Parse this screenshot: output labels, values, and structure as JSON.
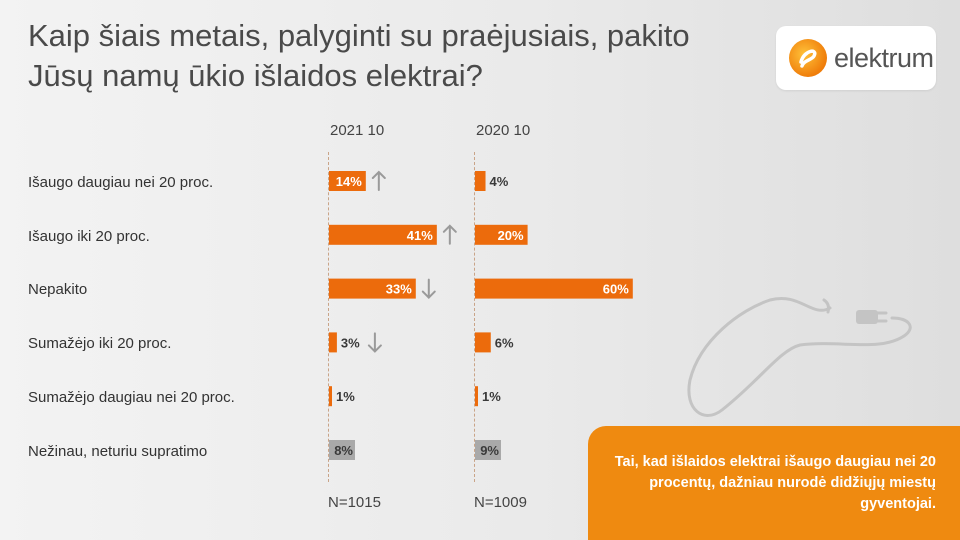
{
  "title": "Kaip šiais metais, palyginti su praėjusiais, pakito Jūsų namų ūkio išlaidos elektrai?",
  "logo": {
    "text": "elektrum"
  },
  "callout": {
    "text": "Tai, kad išlaidos elektrai išaugo daugiau nei 20 procentų, dažniau nurodė didžiųjų miestų gyventojai."
  },
  "colors": {
    "orange": "#ec6b0c",
    "gray": "#a9a9a9",
    "arrow": "#9a9a9a",
    "callout": "#ef8a10"
  },
  "chart_data": {
    "type": "bar",
    "orientation": "horizontal",
    "categories": [
      "Išaugo daugiau nei 20 proc.",
      "Išaugo iki 20 proc.",
      "Nepakito",
      "Sumažėjo iki 20 proc.",
      "Sumažėjo daugiau nei 20 proc.",
      "Nežinau, neturiu supratimo"
    ],
    "series": [
      {
        "name": "2021 10",
        "n": "N=1015",
        "values": [
          14,
          41,
          33,
          3,
          1,
          8
        ],
        "labels": [
          "14%",
          "41%",
          "33%",
          "3%",
          "1%",
          "8%"
        ],
        "trend": [
          "up",
          "up",
          "down",
          "down",
          null,
          null
        ]
      },
      {
        "name": "2020 10",
        "n": "N=1009",
        "values": [
          4,
          20,
          60,
          6,
          1,
          9
        ],
        "labels": [
          "4%",
          "20%",
          "60%",
          "6%",
          "1%",
          "9%"
        ]
      }
    ],
    "highlight_gray_category_index": 5,
    "xlim": [
      0,
      100
    ]
  }
}
